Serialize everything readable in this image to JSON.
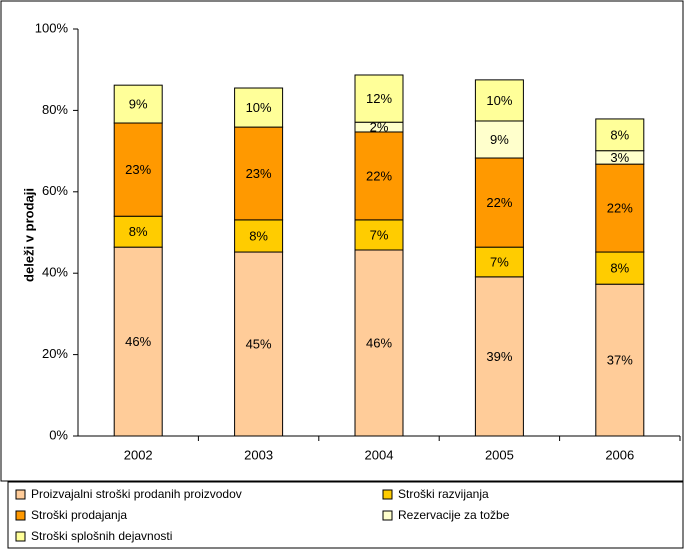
{
  "chart_data": {
    "type": "stacked_bar",
    "y_label": "deleži v prodaji",
    "categories": [
      "2002",
      "2003",
      "2004",
      "2005",
      "2006"
    ],
    "series": [
      {
        "name": "Proizvajalni stroški prodanih proizvodov",
        "color": "#ffcc99",
        "values": [
          46.4,
          45.2,
          45.7,
          39.1,
          37.3
        ],
        "value_labels": [
          "46%",
          "45%",
          "46%",
          "39%",
          "37%"
        ]
      },
      {
        "name": "Stroški razvijanja",
        "color": "#ffcc00",
        "values": [
          7.6,
          7.9,
          7.4,
          7.3,
          7.9
        ],
        "value_labels": [
          "8%",
          "8%",
          "7%",
          "7%",
          "8%"
        ]
      },
      {
        "name": "Stroški prodajanja",
        "color": "#ff9900",
        "values": [
          22.9,
          22.8,
          21.6,
          21.9,
          21.6
        ],
        "value_labels": [
          "23%",
          "23%",
          "22%",
          "22%",
          "22%"
        ]
      },
      {
        "name": "Rezervacije za tožbe",
        "color": "#ffffcc",
        "values": [
          null,
          null,
          2.4,
          9.1,
          3.3
        ],
        "value_labels": [
          null,
          null,
          "2%",
          "9%",
          "3%"
        ]
      },
      {
        "name": "Stroški splošnih dejavnosti",
        "color": "#ffff99",
        "values": [
          9.3,
          9.6,
          11.6,
          10.1,
          7.8
        ],
        "value_labels": [
          "9%",
          "10%",
          "12%",
          "10%",
          "8%"
        ]
      }
    ],
    "ylim": [
      0,
      100
    ],
    "yticks": [
      {
        "value": 0,
        "label": "0%"
      },
      {
        "value": 20,
        "label": "20%"
      },
      {
        "value": 40,
        "label": "40%"
      },
      {
        "value": 60,
        "label": "60%"
      },
      {
        "value": 80,
        "label": "80%"
      },
      {
        "value": 100,
        "label": "100%"
      }
    ],
    "legend": "bottom"
  }
}
